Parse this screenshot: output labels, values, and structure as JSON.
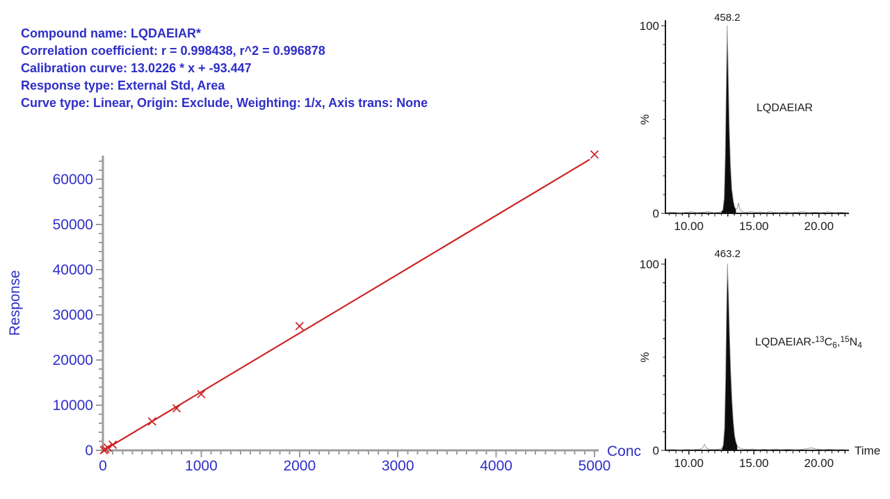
{
  "colors": {
    "header_blue": "#2E2EC8",
    "axis_gray": "#9C9C9C",
    "series_red": "#CC2424",
    "chrom_black": "#1A1A1A",
    "trace_gray": "#8F8F8F",
    "peak_fill": "#0C0C0C"
  },
  "header": {
    "lines": [
      "Compound name: LQDAEIAR*",
      "Correlation coefficient: r = 0.998438, r^2 = 0.996878",
      "Calibration curve: 13.0226 * x + -93.447",
      "Response type: External Std, Area",
      "Curve type: Linear, Origin: Exclude, Weighting: 1/x, Axis trans: None"
    ]
  },
  "chart_data": [
    {
      "id": "calibration",
      "type": "scatter",
      "title": "",
      "xlabel": "Conc",
      "ylabel": "Response",
      "xlim": [
        0,
        5040
      ],
      "ylim": [
        0,
        65500
      ],
      "x_ticks": [
        0,
        1000,
        2000,
        3000,
        4000,
        5000
      ],
      "x_tick_labels": [
        "0",
        "1000",
        "2000",
        "3000",
        "4000",
        "5000"
      ],
      "x_minor_step": 100,
      "y_ticks": [
        0,
        10000,
        20000,
        30000,
        40000,
        50000,
        60000
      ],
      "y_tick_labels": [
        "0",
        "10000",
        "20000",
        "30000",
        "40000",
        "50000",
        "60000"
      ],
      "y_minor_step": 2000,
      "grid": false,
      "marker": "x",
      "points": [
        [
          10,
          40
        ],
        [
          25,
          230
        ],
        [
          50,
          600
        ],
        [
          100,
          1250
        ],
        [
          500,
          6400
        ],
        [
          750,
          9300
        ],
        [
          1000,
          12450
        ],
        [
          2000,
          27500
        ],
        [
          5000,
          65500
        ]
      ],
      "fit": {
        "type": "linear",
        "slope": 13.0226,
        "intercept": -93.447,
        "x_start": 8,
        "x_end": 4952
      }
    },
    {
      "id": "chrom_top",
      "type": "area",
      "peak_label": "458.2",
      "annotation_parts": [
        [
          "n",
          "LQDAEIAR"
        ]
      ],
      "ylabel": "%",
      "xlabel": "",
      "xlim": [
        8.2,
        22.15
      ],
      "ylim": [
        0,
        100
      ],
      "x_ticks": [
        10,
        15,
        20
      ],
      "x_tick_labels": [
        "10.00",
        "15.00",
        "20.00"
      ],
      "y_ticks": [
        0,
        100
      ],
      "y_tick_labels": [
        "0",
        "100"
      ],
      "fill_range": [
        12.5,
        13.62
      ],
      "trace": [
        [
          8.25,
          0.4
        ],
        [
          8.8,
          0.6
        ],
        [
          9.3,
          0.3
        ],
        [
          9.8,
          0.5
        ],
        [
          10.2,
          0.9
        ],
        [
          10.6,
          0.4
        ],
        [
          11.0,
          0.6
        ],
        [
          11.5,
          0.9
        ],
        [
          11.9,
          0.4
        ],
        [
          12.3,
          0.6
        ],
        [
          12.5,
          0.9
        ],
        [
          12.62,
          2
        ],
        [
          12.72,
          8
        ],
        [
          12.8,
          30
        ],
        [
          12.88,
          68
        ],
        [
          12.95,
          100
        ],
        [
          13.02,
          78
        ],
        [
          13.1,
          48
        ],
        [
          13.2,
          26
        ],
        [
          13.3,
          13
        ],
        [
          13.42,
          6.5
        ],
        [
          13.52,
          3.5
        ],
        [
          13.62,
          2.2
        ],
        [
          13.72,
          2.6
        ],
        [
          13.82,
          5.5
        ],
        [
          13.92,
          2.2
        ],
        [
          14.1,
          0.9
        ],
        [
          14.4,
          0.5
        ],
        [
          14.8,
          1.0
        ],
        [
          15.1,
          0.5
        ],
        [
          15.5,
          0.8
        ],
        [
          15.9,
          0.4
        ],
        [
          16.2,
          0.9
        ],
        [
          16.6,
          0.5
        ],
        [
          17.0,
          0.4
        ],
        [
          17.4,
          0.8
        ],
        [
          17.8,
          0.4
        ],
        [
          18.3,
          0.6
        ],
        [
          18.8,
          0.9
        ],
        [
          19.2,
          0.4
        ],
        [
          19.7,
          0.6
        ],
        [
          20.2,
          0.4
        ],
        [
          20.7,
          0.8
        ],
        [
          21.2,
          0.4
        ],
        [
          21.7,
          0.6
        ],
        [
          22.1,
          0.4
        ]
      ]
    },
    {
      "id": "chrom_bottom",
      "type": "area",
      "peak_label": "463.2",
      "annotation_parts": [
        [
          "n",
          "LQDAEIAR-"
        ],
        [
          "sup",
          "13"
        ],
        [
          "n",
          "C"
        ],
        [
          "sub",
          "6"
        ],
        [
          "n",
          ","
        ],
        [
          "sup",
          "15"
        ],
        [
          "n",
          "N"
        ],
        [
          "sub",
          "4"
        ]
      ],
      "ylabel": "%",
      "xlabel": "Time",
      "xlim": [
        8.2,
        22.15
      ],
      "ylim": [
        0,
        100
      ],
      "x_ticks": [
        10,
        15,
        20
      ],
      "x_tick_labels": [
        "10.00",
        "15.00",
        "20.00"
      ],
      "y_ticks": [
        0,
        100
      ],
      "y_tick_labels": [
        "0",
        "100"
      ],
      "fill_range": [
        12.55,
        13.72
      ],
      "trace": [
        [
          8.25,
          0.4
        ],
        [
          8.8,
          0.5
        ],
        [
          9.3,
          0.3
        ],
        [
          9.8,
          0.5
        ],
        [
          10.3,
          0.4
        ],
        [
          10.8,
          0.6
        ],
        [
          11.05,
          1.2
        ],
        [
          11.2,
          3.2
        ],
        [
          11.35,
          1.2
        ],
        [
          11.6,
          0.5
        ],
        [
          12.0,
          0.5
        ],
        [
          12.35,
          0.7
        ],
        [
          12.55,
          1.0
        ],
        [
          12.65,
          3
        ],
        [
          12.75,
          12
        ],
        [
          12.83,
          38
        ],
        [
          12.9,
          72
        ],
        [
          12.97,
          100
        ],
        [
          13.05,
          84
        ],
        [
          13.13,
          62
        ],
        [
          13.22,
          42
        ],
        [
          13.32,
          26
        ],
        [
          13.42,
          15
        ],
        [
          13.52,
          8
        ],
        [
          13.62,
          4.5
        ],
        [
          13.72,
          2.5
        ],
        [
          13.85,
          1.4
        ],
        [
          14.1,
          0.8
        ],
        [
          14.5,
          0.5
        ],
        [
          14.9,
          0.7
        ],
        [
          15.3,
          0.4
        ],
        [
          15.8,
          0.6
        ],
        [
          16.2,
          0.4
        ],
        [
          16.7,
          0.7
        ],
        [
          17.1,
          0.4
        ],
        [
          17.6,
          0.6
        ],
        [
          18.1,
          0.4
        ],
        [
          18.6,
          0.5
        ],
        [
          19.1,
          0.9
        ],
        [
          19.4,
          1.3
        ],
        [
          19.8,
          0.8
        ],
        [
          20.3,
          0.4
        ],
        [
          20.8,
          0.6
        ],
        [
          21.3,
          0.4
        ],
        [
          21.8,
          0.5
        ],
        [
          22.1,
          0.4
        ]
      ]
    }
  ]
}
